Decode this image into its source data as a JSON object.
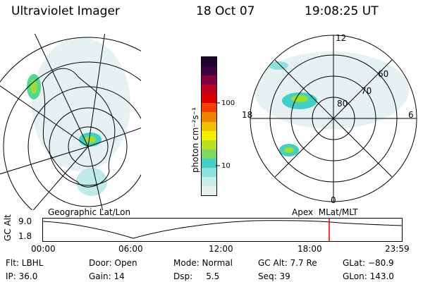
{
  "header": {
    "instrument": "Ultraviolet Imager",
    "date": "18 Oct 07",
    "time": "19:08:25 UT"
  },
  "left_panel": {
    "caption": "Geographic Lat/Lon"
  },
  "right_panel": {
    "caption": "Apex  MLat/MLT",
    "ring_labels": [
      "80",
      "70",
      "60"
    ],
    "mlt_labels": {
      "top": "12",
      "left": "18",
      "right": "6",
      "bottom": "0"
    }
  },
  "colorbar": {
    "label": "photon cm⁻²s⁻¹",
    "ticks": [
      "100",
      "10"
    ],
    "colors": [
      "#e8f0ee",
      "#c8ecec",
      "#8ee0dc",
      "#40d0c8",
      "#7ed860",
      "#b8e020",
      "#f0f000",
      "#f0c000",
      "#f08000",
      "#f04000",
      "#e00000",
      "#c00020",
      "#800040",
      "#400040",
      "#200030"
    ]
  },
  "orbit": {
    "ylabel": "GC Alt",
    "y_ticks": [
      "9.0",
      "1.8"
    ],
    "x_ticks": [
      "00:00",
      "06:00",
      "12:00",
      "18:00",
      "23:59"
    ],
    "marker_color": "#e00000"
  },
  "info": {
    "filter": "Flt: LBHL",
    "ip": "IP: 36.0",
    "door": "Door: Open",
    "gain": "Gain: 14",
    "mode": "Mode: Normal",
    "dsp": "Dsp:     5.5",
    "gc_alt": "GC Alt: 7.7 Re",
    "seq": "Seq: 39",
    "glat": "GLat: −80.9",
    "glon": "GLon: 143.0"
  }
}
